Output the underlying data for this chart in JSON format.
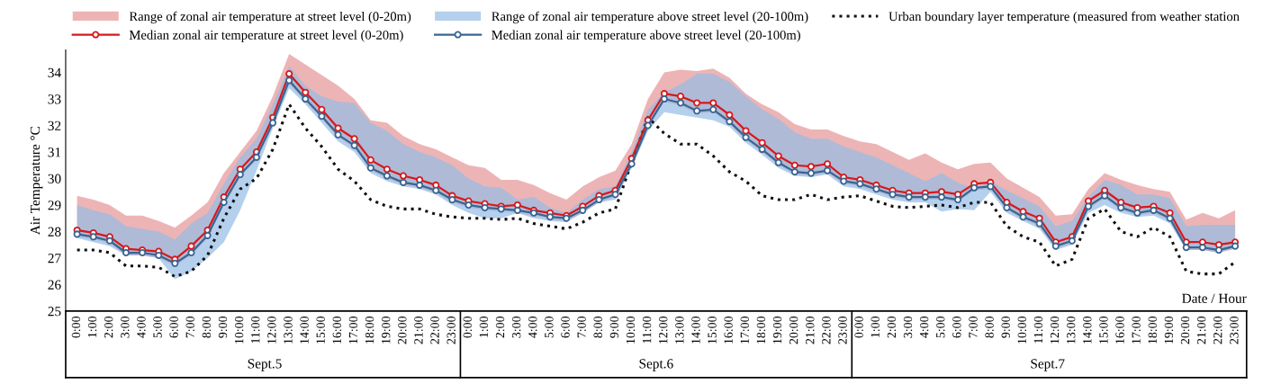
{
  "chart_data": {
    "type": "line",
    "xlabel": "Date / Hour",
    "ylabel": "Air Temperature °C",
    "categories": [
      "0:00",
      "1:00",
      "2:00",
      "3:00",
      "4:00",
      "5:00",
      "6:00",
      "7:00",
      "8:00",
      "9:00",
      "10:00",
      "11:00",
      "12:00",
      "13:00",
      "14:00",
      "15:00",
      "16:00",
      "17:00",
      "18:00",
      "19:00",
      "20:00",
      "21:00",
      "22:00",
      "23:00",
      "0:00",
      "1:00",
      "2:00",
      "3:00",
      "4:00",
      "5:00",
      "6:00",
      "7:00",
      "8:00",
      "9:00",
      "10:00",
      "11:00",
      "12:00",
      "13:00",
      "14:00",
      "15:00",
      "16:00",
      "17:00",
      "18:00",
      "19:00",
      "20:00",
      "21:00",
      "22:00",
      "23:00",
      "0:00",
      "1:00",
      "2:00",
      "3:00",
      "4:00",
      "5:00",
      "6:00",
      "7:00",
      "8:00",
      "9:00",
      "10:00",
      "11:00",
      "12:00",
      "13:00",
      "14:00",
      "15:00",
      "16:00",
      "17:00",
      "18:00",
      "19:00",
      "20:00",
      "21:00",
      "22:00",
      "23:00"
    ],
    "annotations": [
      "Sept.5",
      "Sept.6",
      "Sept.7",
      "Range of zonal air temperature at street level (0-20m)",
      "Range of zonal air temperature above street level (20-100m)"
    ],
    "ylim": [
      25,
      34.85
    ],
    "yticks": [
      25,
      26,
      27,
      28,
      29,
      30,
      31,
      32,
      33,
      34
    ],
    "grid": false,
    "legend": "top",
    "series": [
      {
        "name": "Median zonal air temperature at street level (0-20m)",
        "color": "#d7191c",
        "line_style": "solid",
        "marker": "circle",
        "values": [
          28.05,
          27.95,
          27.8,
          27.35,
          27.3,
          27.25,
          26.95,
          27.45,
          28.05,
          29.3,
          30.35,
          31.0,
          32.3,
          33.95,
          33.25,
          32.6,
          31.9,
          31.5,
          30.7,
          30.35,
          30.1,
          29.95,
          29.75,
          29.35,
          29.15,
          29.05,
          28.95,
          29.0,
          28.8,
          28.7,
          28.6,
          28.95,
          29.35,
          29.55,
          30.75,
          32.2,
          33.2,
          33.1,
          32.85,
          32.85,
          32.4,
          31.8,
          31.35,
          30.85,
          30.5,
          30.45,
          30.55,
          30.05,
          29.95,
          29.75,
          29.55,
          29.45,
          29.45,
          29.5,
          29.4,
          29.8,
          29.85,
          29.1,
          28.75,
          28.5,
          27.6,
          27.8,
          29.15,
          29.55,
          29.1,
          28.9,
          28.95,
          28.7,
          27.6,
          27.6,
          27.5,
          27.6
        ],
        "upper": [
          29.35,
          29.2,
          29.0,
          28.6,
          28.6,
          28.4,
          28.15,
          28.6,
          29.1,
          30.2,
          31.0,
          31.8,
          33.1,
          34.7,
          34.3,
          33.9,
          33.5,
          33.0,
          32.2,
          32.1,
          31.6,
          31.3,
          31.1,
          30.8,
          30.5,
          30.4,
          29.95,
          29.95,
          29.75,
          29.45,
          29.2,
          29.7,
          30.05,
          30.3,
          31.3,
          33.0,
          34.0,
          34.1,
          34.05,
          34.15,
          33.8,
          33.2,
          32.8,
          32.5,
          32.05,
          31.85,
          31.85,
          31.6,
          31.4,
          31.3,
          31.0,
          30.7,
          30.95,
          30.6,
          30.35,
          30.55,
          30.6,
          30.0,
          29.65,
          29.3,
          28.6,
          28.65,
          29.6,
          30.2,
          29.95,
          29.75,
          29.6,
          29.5,
          28.45,
          28.7,
          28.5,
          28.8
        ],
        "lower": [
          27.8,
          27.7,
          27.55,
          27.1,
          27.1,
          27.0,
          26.7,
          27.1,
          27.75,
          29.0,
          30.05,
          30.7,
          32.0,
          33.55,
          32.9,
          32.25,
          31.55,
          31.15,
          30.3,
          30.0,
          29.75,
          29.65,
          29.45,
          29.1,
          28.9,
          28.8,
          28.75,
          28.7,
          28.6,
          28.45,
          28.4,
          28.7,
          29.1,
          29.3,
          30.45,
          31.9,
          32.9,
          32.75,
          32.45,
          32.5,
          32.05,
          31.45,
          31.0,
          30.5,
          30.15,
          30.1,
          30.2,
          29.8,
          29.7,
          29.5,
          29.3,
          29.2,
          29.2,
          29.2,
          29.1,
          29.55,
          29.6,
          28.8,
          28.45,
          28.2,
          27.35,
          27.55,
          28.85,
          29.25,
          28.8,
          28.6,
          28.7,
          28.4,
          27.3,
          27.3,
          27.2,
          27.35
        ]
      },
      {
        "name": "Median zonal air temperature above street level (20-100m)",
        "color": "#3a6591",
        "line_style": "solid",
        "marker": "circle",
        "values": [
          27.9,
          27.8,
          27.65,
          27.2,
          27.2,
          27.1,
          26.8,
          27.2,
          27.85,
          29.1,
          30.15,
          30.8,
          32.1,
          33.7,
          33.0,
          32.35,
          31.65,
          31.25,
          30.4,
          30.1,
          29.85,
          29.75,
          29.55,
          29.2,
          29.0,
          28.9,
          28.85,
          28.8,
          28.7,
          28.55,
          28.5,
          28.8,
          29.2,
          29.4,
          30.55,
          32.0,
          33.0,
          32.85,
          32.55,
          32.6,
          32.15,
          31.55,
          31.1,
          30.6,
          30.25,
          30.2,
          30.3,
          29.9,
          29.8,
          29.6,
          29.4,
          29.3,
          29.3,
          29.3,
          29.2,
          29.65,
          29.7,
          28.9,
          28.55,
          28.3,
          27.45,
          27.65,
          28.95,
          29.35,
          28.9,
          28.7,
          28.8,
          28.5,
          27.4,
          27.4,
          27.3,
          27.45
        ],
        "upper": [
          29.0,
          28.8,
          28.65,
          28.2,
          28.1,
          28.0,
          27.7,
          28.3,
          28.7,
          29.8,
          30.8,
          31.5,
          32.8,
          34.25,
          33.5,
          33.1,
          32.9,
          32.85,
          32.1,
          31.8,
          31.3,
          31.0,
          30.8,
          30.5,
          30.0,
          29.7,
          29.65,
          29.2,
          29.3,
          28.9,
          28.7,
          29.2,
          29.6,
          29.7,
          31.0,
          32.6,
          33.25,
          33.55,
          33.95,
          33.95,
          33.65,
          33.1,
          32.6,
          32.25,
          31.75,
          31.5,
          31.5,
          31.2,
          31.0,
          30.8,
          30.5,
          30.2,
          29.9,
          30.2,
          29.85,
          29.6,
          29.9,
          29.55,
          29.25,
          28.95,
          28.2,
          28.4,
          29.3,
          29.95,
          29.75,
          29.4,
          29.4,
          29.25,
          28.2,
          28.25,
          28.25,
          28.25
        ],
        "lower": [
          27.75,
          27.6,
          27.45,
          27.1,
          27.1,
          27.0,
          26.2,
          26.5,
          27.0,
          27.6,
          28.8,
          30.3,
          31.9,
          33.4,
          32.8,
          32.1,
          31.4,
          31.0,
          30.2,
          29.9,
          29.7,
          29.6,
          29.4,
          29.0,
          28.7,
          28.5,
          28.5,
          28.7,
          28.5,
          28.4,
          28.35,
          28.7,
          29.1,
          29.2,
          30.4,
          31.8,
          32.5,
          32.4,
          32.3,
          32.2,
          31.95,
          31.35,
          30.9,
          30.4,
          30.1,
          30.05,
          30.15,
          29.7,
          29.6,
          29.4,
          29.2,
          29.1,
          29.1,
          28.75,
          28.85,
          28.8,
          29.5,
          28.7,
          28.4,
          28.1,
          27.3,
          27.5,
          28.7,
          29.0,
          28.7,
          28.55,
          28.6,
          28.3,
          27.3,
          27.3,
          27.2,
          27.35
        ]
      },
      {
        "name": "Urban boundary layer temperature (measured from weather station",
        "color": "#111111",
        "line_style": "dotted",
        "marker": "none",
        "values": [
          27.3,
          27.3,
          27.2,
          26.7,
          26.7,
          26.65,
          26.3,
          26.5,
          27.1,
          28.5,
          29.6,
          30.0,
          31.1,
          32.8,
          31.9,
          31.2,
          30.35,
          29.9,
          29.2,
          28.95,
          28.85,
          28.85,
          28.65,
          28.55,
          28.5,
          28.5,
          28.45,
          28.5,
          28.3,
          28.2,
          28.1,
          28.35,
          28.7,
          28.85,
          30.6,
          32.3,
          31.7,
          31.3,
          31.3,
          30.85,
          30.25,
          29.9,
          29.35,
          29.2,
          29.2,
          29.4,
          29.2,
          29.3,
          29.35,
          29.15,
          28.95,
          28.9,
          28.95,
          29.0,
          28.9,
          29.1,
          29.1,
          28.2,
          27.8,
          27.6,
          26.7,
          26.95,
          28.5,
          28.85,
          28.0,
          27.8,
          28.15,
          27.8,
          26.5,
          26.4,
          26.4,
          26.85
        ]
      }
    ]
  }
}
